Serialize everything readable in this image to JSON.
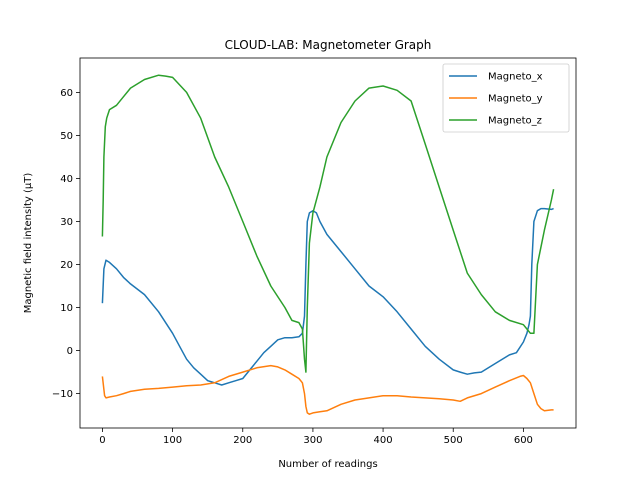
{
  "chart_data": {
    "type": "line",
    "title": "CLOUD-LAB: Magnetometer Graph",
    "xlabel": "Number of readings",
    "ylabel": "Magnetic field intensity (μT)",
    "xlim": [
      -32,
      675
    ],
    "ylim": [
      -18,
      68
    ],
    "xticks": [
      0,
      100,
      200,
      300,
      400,
      500,
      600
    ],
    "yticks": [
      -10,
      0,
      10,
      20,
      30,
      40,
      50,
      60
    ],
    "grid": false,
    "legend_position": "top-right",
    "series": [
      {
        "name": "Magneto_x",
        "color": "#1f77b4",
        "x": [
          0,
          2,
          5,
          10,
          20,
          30,
          40,
          60,
          80,
          100,
          110,
          120,
          130,
          140,
          150,
          160,
          170,
          180,
          190,
          200,
          210,
          220,
          230,
          240,
          250,
          260,
          270,
          280,
          285,
          288,
          290,
          292,
          295,
          300,
          305,
          310,
          320,
          340,
          360,
          380,
          400,
          420,
          440,
          460,
          480,
          500,
          510,
          520,
          530,
          540,
          560,
          580,
          590,
          600,
          605,
          608,
          610,
          612,
          615,
          620,
          625,
          630,
          640,
          643
        ],
        "y": [
          11,
          19,
          21,
          20.5,
          19,
          17,
          15.5,
          13,
          9,
          4,
          1,
          -2,
          -4,
          -5.5,
          -7,
          -7.5,
          -8,
          -7.5,
          -7,
          -6.5,
          -4.5,
          -2.5,
          -0.5,
          1,
          2.5,
          3,
          3,
          3.2,
          4,
          8,
          20,
          30,
          32,
          32.5,
          32,
          30,
          27,
          23,
          19,
          15,
          12.5,
          9,
          5,
          1,
          -2,
          -4.5,
          -5,
          -5.5,
          -5.2,
          -5,
          -3,
          -1,
          -0.5,
          2,
          4,
          6,
          8,
          20,
          30,
          32.5,
          33,
          33,
          32.8,
          33
        ]
      },
      {
        "name": "Magneto_y",
        "color": "#ff7f0e",
        "x": [
          0,
          3,
          5,
          10,
          20,
          30,
          40,
          60,
          80,
          100,
          120,
          140,
          160,
          180,
          200,
          220,
          240,
          250,
          260,
          270,
          280,
          285,
          288,
          290,
          292,
          295,
          300,
          310,
          320,
          340,
          360,
          380,
          400,
          420,
          440,
          460,
          480,
          500,
          510,
          520,
          540,
          560,
          580,
          595,
          600,
          605,
          610,
          615,
          620,
          625,
          630,
          640,
          643
        ],
        "y": [
          -6,
          -10.5,
          -11,
          -10.8,
          -10.5,
          -10,
          -9.5,
          -9,
          -8.8,
          -8.5,
          -8.2,
          -8,
          -7.5,
          -6,
          -5,
          -4,
          -3.5,
          -3.8,
          -4.5,
          -5.5,
          -6.5,
          -7.5,
          -10,
          -13,
          -14.5,
          -14.8,
          -14.5,
          -14.2,
          -14,
          -12.5,
          -11.5,
          -11,
          -10.5,
          -10.5,
          -10.8,
          -11,
          -11.2,
          -11.5,
          -11.8,
          -11,
          -10,
          -8.5,
          -7,
          -6,
          -5.8,
          -6.5,
          -7.5,
          -10,
          -12.5,
          -13.5,
          -14,
          -13.8,
          -13.8
        ]
      },
      {
        "name": "Magneto_z",
        "color": "#2ca02c",
        "x": [
          0,
          1,
          2,
          4,
          6,
          8,
          10,
          20,
          30,
          40,
          60,
          80,
          90,
          100,
          120,
          140,
          160,
          180,
          200,
          220,
          240,
          260,
          270,
          280,
          285,
          288,
          290,
          292,
          295,
          300,
          310,
          320,
          340,
          360,
          380,
          400,
          420,
          440,
          460,
          480,
          500,
          520,
          540,
          560,
          580,
          600,
          605,
          610,
          615,
          620,
          625,
          630,
          640,
          643
        ],
        "y": [
          26.5,
          35,
          45,
          52,
          54,
          55,
          56,
          57,
          59,
          61,
          63,
          64,
          63.8,
          63.5,
          60,
          54,
          45,
          38,
          30,
          22,
          15,
          10,
          7,
          6.5,
          5,
          -2,
          -5,
          10,
          25,
          32,
          38,
          45,
          53,
          58,
          61,
          61.5,
          60.5,
          58,
          48,
          38,
          28,
          18,
          13,
          9,
          7,
          6,
          5,
          4,
          4,
          20,
          24,
          28,
          35,
          37.5
        ]
      }
    ]
  }
}
